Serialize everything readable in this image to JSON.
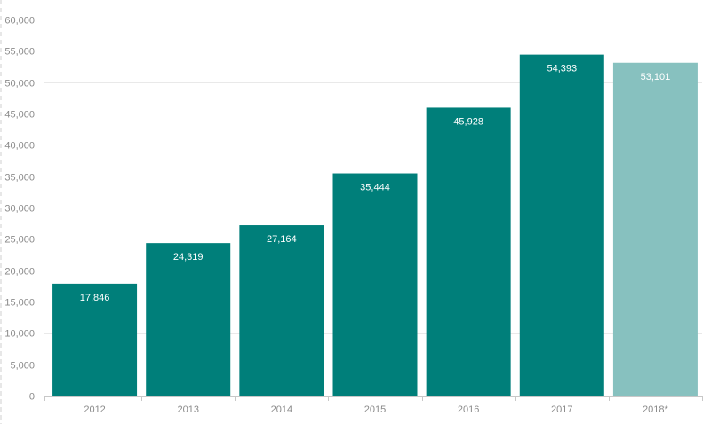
{
  "chart_data": {
    "type": "bar",
    "categories": [
      "2012",
      "2013",
      "2014",
      "2015",
      "2016",
      "2017",
      "2018*"
    ],
    "values": [
      17846,
      24319,
      27164,
      35444,
      45928,
      54393,
      53101
    ],
    "data_labels": [
      "17,846",
      "24,319",
      "27,164",
      "35,444",
      "45,928",
      "54,393",
      "53,101"
    ],
    "ylim": [
      0,
      60000
    ],
    "yticks": [
      0,
      5000,
      10000,
      15000,
      20000,
      25000,
      30000,
      35000,
      40000,
      45000,
      50000,
      55000,
      60000
    ],
    "ytick_labels": [
      "0",
      "5,000",
      "10,000",
      "15,000",
      "20,000",
      "25,000",
      "30,000",
      "35,000",
      "40,000",
      "45,000",
      "50,000",
      "55,000",
      "60,000"
    ],
    "title": "",
    "xlabel": "",
    "ylabel": "",
    "grid": true,
    "colors": {
      "bar": "#007f7a",
      "forecast_bar": "#87c1bf",
      "forecast_categories": [
        "2018*"
      ]
    }
  }
}
